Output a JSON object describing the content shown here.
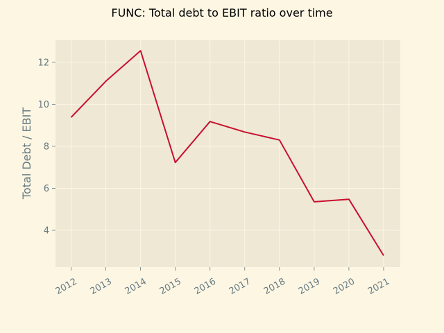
{
  "chart_data": {
    "type": "line",
    "title": "FUNC: Total debt to EBIT ratio over time",
    "xlabel": "",
    "ylabel": "Total Debt / EBIT",
    "x": [
      "2012",
      "2013",
      "2014",
      "2015",
      "2016",
      "2017",
      "2018",
      "2019",
      "2020",
      "2021"
    ],
    "series": [
      {
        "values": [
          9.38,
          11.1,
          12.55,
          7.23,
          9.18,
          8.68,
          8.3,
          5.36,
          5.48,
          2.8
        ]
      }
    ],
    "xlim": [
      2011.55,
      2021.48
    ],
    "ylim": [
      2.25,
      13.05
    ],
    "yticks": [
      "4",
      "6",
      "8",
      "10",
      "12"
    ],
    "grid": true,
    "legend": "none"
  },
  "colors": {
    "page_background": "#fdf6e3",
    "plot_background": "#eee8d5",
    "grid": "#fdf6e3",
    "line": "#c8102e",
    "tick_text": "#657b83",
    "axis_label": "#657b83"
  }
}
